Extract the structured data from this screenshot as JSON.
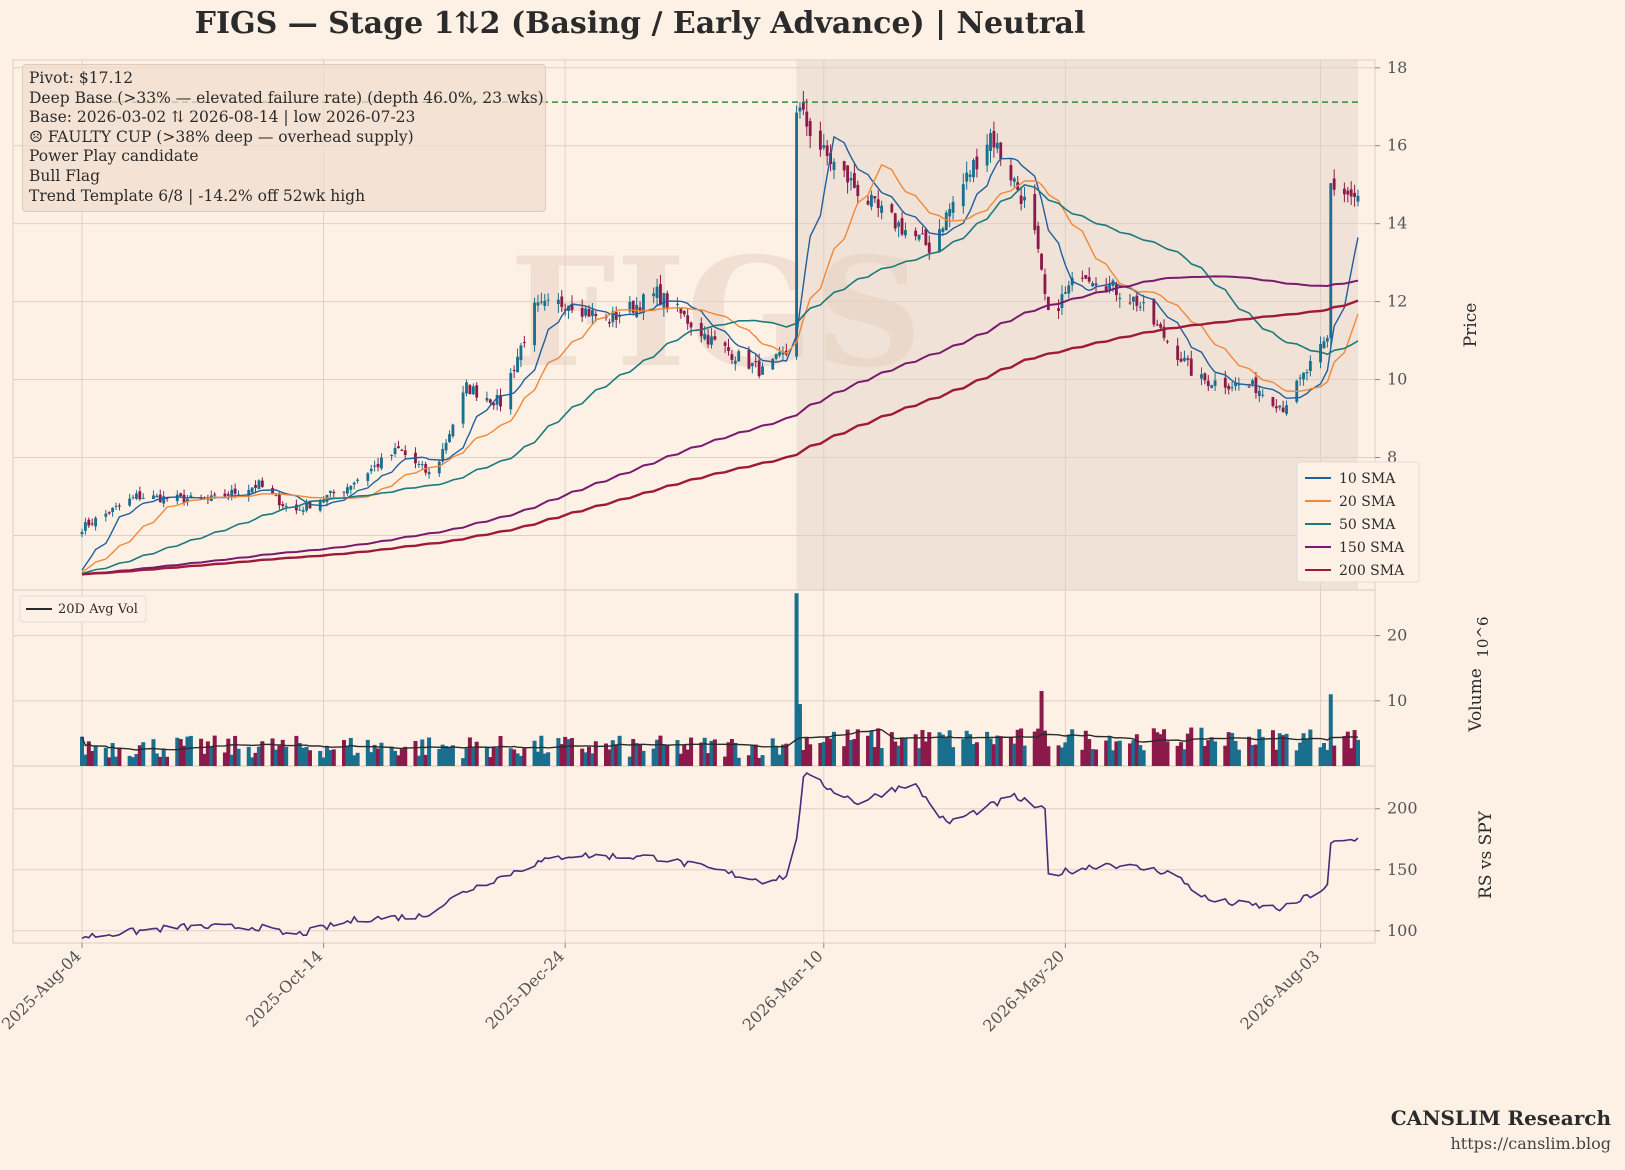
{
  "title": "FIGS  —  Stage 1⇅2 (Basing / Early Advance)  |  Neutral",
  "watermark": "FIGS",
  "annotations": [
    "Pivot: $17.12",
    "Deep Base (>33% — elevated failure rate)  (depth 46.0%, 23 wks)",
    "Base: 2026-03-02 ⇅ 2026-08-14  |  low 2026-07-23",
    "☹ FAULTY CUP (>38% deep — overhead supply)",
    "Power Play candidate",
    "Bull Flag",
    "Trend Template 6/8  |  -14.2% off 52wk high"
  ],
  "footer": {
    "brand": "CANSLIM Research",
    "url": "https://canslim.blog"
  },
  "colors": {
    "background": "#fdf1e6",
    "up": "#1a6e8e",
    "down": "#8b1a4a",
    "sma10": "#1f5f9e",
    "sma20": "#f0883a",
    "sma50": "#1c7a7a",
    "sma150": "#7a1a6e",
    "sma200": "#9e1a3a",
    "pivot": "#2e8b3e",
    "rs": "#4a2a7a",
    "avgvol": "#2b2b2b",
    "base_shade": "#e8d8cc"
  },
  "chart_data": [
    {
      "type": "candlestick",
      "ylabel": "Price",
      "ylim": [
        4.6,
        18.2
      ],
      "yticks": [
        6,
        8,
        10,
        12,
        14,
        16,
        18
      ],
      "x_tick_labels": [
        "2025-Aug-04",
        "2025-Oct-14",
        "2025-Dec-24",
        "2026-Mar-10",
        "2026-May-20",
        "2026-Aug-03"
      ],
      "pivot": 17.12,
      "base_shading": {
        "start": "2026-03-02",
        "end": "2026-08-14"
      },
      "legend": [
        "10 SMA",
        "20 SMA",
        "50 SMA",
        "150 SMA",
        "200 SMA"
      ],
      "legend_position": "lower-right",
      "close_keypoints": [
        [
          "2025-Aug-04",
          6.2
        ],
        [
          "2025-Aug-20",
          7.0
        ],
        [
          "2025-Sep-10",
          6.9
        ],
        [
          "2025-Sep-25",
          7.3
        ],
        [
          "2025-Oct-05",
          6.6
        ],
        [
          "2025-Oct-20",
          7.2
        ],
        [
          "2025-Nov-05",
          8.2
        ],
        [
          "2025-Nov-15",
          7.5
        ],
        [
          "2025-Nov-25",
          9.8
        ],
        [
          "2025-Dec-05",
          9.4
        ],
        [
          "2025-Dec-15",
          11.8
        ],
        [
          "2025-Dec-25",
          12.0
        ],
        [
          "2026-Jan-05",
          11.5
        ],
        [
          "2026-Jan-20",
          12.2
        ],
        [
          "2026-Feb-05",
          11.0
        ],
        [
          "2026-Feb-20",
          10.2
        ],
        [
          "2026-Mar-01",
          10.8
        ],
        [
          "2026-Mar-02",
          17.0
        ],
        [
          "2026-Mar-10",
          15.8
        ],
        [
          "2026-Mar-25",
          14.4
        ],
        [
          "2026-Apr-10",
          13.4
        ],
        [
          "2026-Apr-28",
          16.3
        ],
        [
          "2026-May-10",
          14.2
        ],
        [
          "2026-May-15",
          11.6
        ],
        [
          "2026-May-25",
          12.8
        ],
        [
          "2026-Jun-10",
          12.0
        ],
        [
          "2026-Jun-28",
          10.0
        ],
        [
          "2026-Jul-15",
          9.8
        ],
        [
          "2026-Jul-23",
          9.3
        ],
        [
          "2026-Aug-05",
          11.0
        ],
        [
          "2026-Aug-06",
          15.0
        ],
        [
          "2026-Aug-14",
          14.6
        ]
      ]
    },
    {
      "type": "bar",
      "ylabel": "Volume",
      "unit": "10^6",
      "yticks": [
        10,
        20
      ],
      "ylim": [
        0,
        27
      ],
      "legend": [
        "20D Avg Vol"
      ],
      "legend_position": "upper-left",
      "spikes": [
        [
          "2026-Mar-02",
          26.5
        ],
        [
          "2026-Mar-03",
          9.5
        ],
        [
          "2026-May-13",
          11.5
        ],
        [
          "2026-Aug-06",
          11.0
        ]
      ]
    },
    {
      "type": "line",
      "ylabel": "RS vs SPY",
      "yticks": [
        100,
        150,
        200
      ],
      "ylim": [
        90,
        235
      ],
      "rs_keypoints": [
        [
          "2025-Aug-04",
          95
        ],
        [
          "2025-Sep-01",
          103
        ],
        [
          "2025-Sep-25",
          103
        ],
        [
          "2025-Oct-05",
          96
        ],
        [
          "2025-Oct-25",
          110
        ],
        [
          "2025-Nov-12",
          112
        ],
        [
          "2025-Nov-25",
          133
        ],
        [
          "2025-Dec-15",
          155
        ],
        [
          "2025-Dec-25",
          162
        ],
        [
          "2026-Jan-20",
          160
        ],
        [
          "2026-Feb-20",
          141
        ],
        [
          "2026-Mar-01",
          146
        ],
        [
          "2026-Mar-04",
          228
        ],
        [
          "2026-Mar-20",
          205
        ],
        [
          "2026-Apr-05",
          222
        ],
        [
          "2026-Apr-15",
          188
        ],
        [
          "2026-May-05",
          210
        ],
        [
          "2026-May-14",
          198
        ],
        [
          "2026-May-15",
          146
        ],
        [
          "2026-Jun-01",
          155
        ],
        [
          "2026-Jun-20",
          148
        ],
        [
          "2026-Jul-01",
          125
        ],
        [
          "2026-Jul-23",
          118
        ],
        [
          "2026-Aug-05",
          136
        ],
        [
          "2026-Aug-06",
          171
        ],
        [
          "2026-Aug-14",
          175
        ]
      ]
    }
  ]
}
